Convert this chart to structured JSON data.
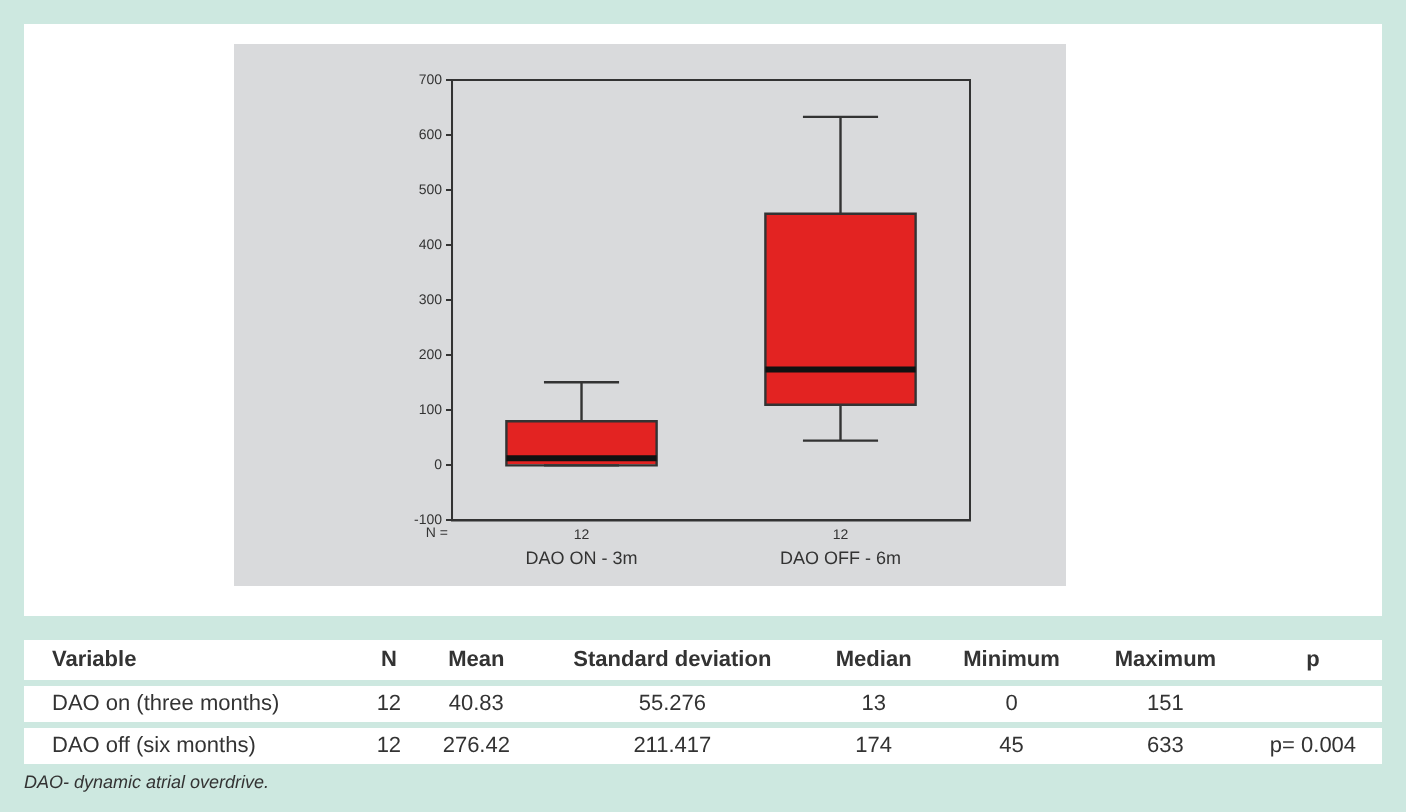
{
  "chart_data": [
    {
      "type": "box",
      "categories": [
        "DAO ON - 3m",
        "DAO OFF - 6m"
      ],
      "color": "#e32322",
      "boxes": [
        {
          "low": 0,
          "q1": 0,
          "median": 13,
          "q3": 80,
          "high": 151
        },
        {
          "low": 45,
          "q1": 110,
          "median": 174,
          "q3": 457,
          "high": 633
        }
      ],
      "ylim": [
        -100,
        700
      ],
      "yticks": [
        -100,
        0,
        100,
        200,
        300,
        400,
        500,
        600,
        700
      ],
      "grid": false,
      "annotations": [
        "N =",
        "12",
        "12"
      ]
    },
    {
      "type": "other",
      "categories": [
        "Variable",
        "N",
        "Mean",
        "Standard deviation",
        "Median",
        "Minimum",
        "Maximum",
        "p"
      ],
      "cell_labels": [
        [
          "DAO on (three months)",
          "12",
          "40.83",
          "55.276",
          "13",
          "0",
          "151",
          null
        ],
        [
          "DAO off (six months)",
          "12",
          "276.42",
          "211.417",
          "174",
          "45",
          "633",
          "p= 0.004"
        ]
      ],
      "annotations": [
        "DAO- dynamic atrial overdrive."
      ]
    }
  ]
}
